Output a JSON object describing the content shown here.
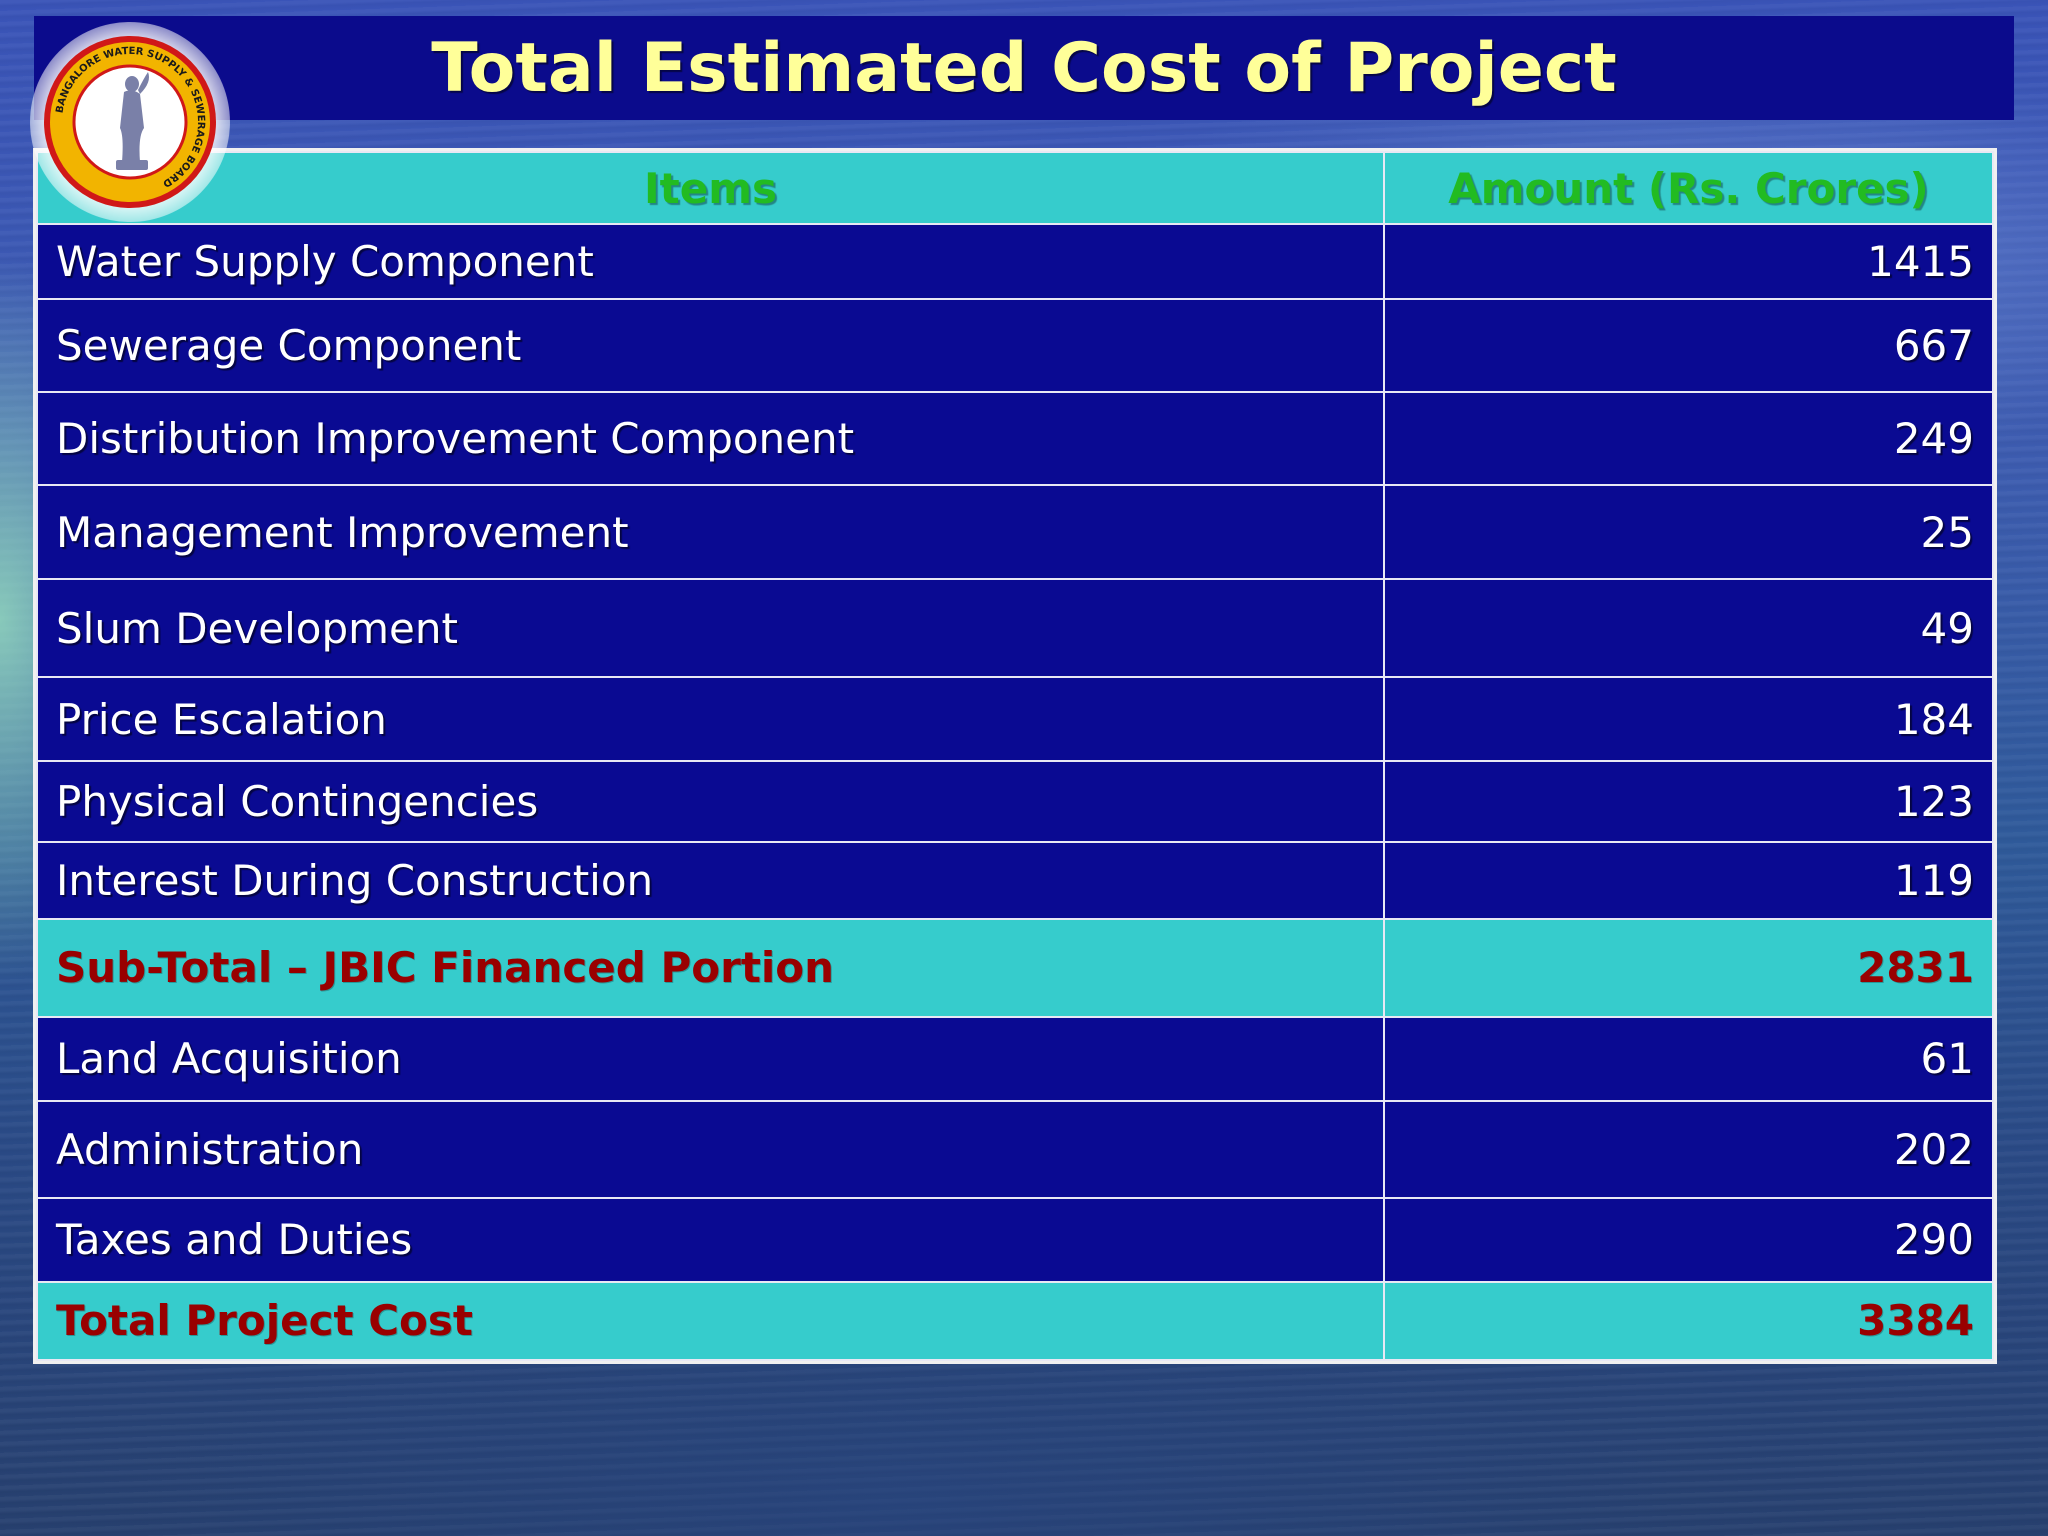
{
  "slide": {
    "title": "Total Estimated Cost of Project",
    "logo": {
      "icon": "bwssb-seal-icon",
      "text": "BANGALORE WATER SUPPLY & SEWERAGE BOARD",
      "colors": {
        "ring": "#f2b400",
        "rim": "#d01818",
        "center": "#ffffff"
      }
    }
  },
  "table": {
    "headers": {
      "items": "Items",
      "amount": "Amount (Rs. Crores)"
    },
    "rows": [
      {
        "item": "Water Supply Component",
        "amount": "1415"
      },
      {
        "item": "Sewerage Component",
        "amount": "667"
      },
      {
        "item": "Distribution Improvement Component",
        "amount": "249"
      },
      {
        "item": "Management Improvement",
        "amount": "25"
      },
      {
        "item": "Slum Development",
        "amount": "49"
      },
      {
        "item": "Price Escalation",
        "amount": "184"
      },
      {
        "item": "Physical Contingencies",
        "amount": "123"
      },
      {
        "item": "Interest During Construction",
        "amount": "119"
      },
      {
        "item": "Sub-Total – JBIC Financed Portion",
        "amount": "2831"
      },
      {
        "item": "Land Acquisition",
        "amount": "61"
      },
      {
        "item": "Administration",
        "amount": "202"
      },
      {
        "item": "Taxes and Duties",
        "amount": "290"
      },
      {
        "item": "Total Project Cost",
        "amount": "3384"
      }
    ]
  },
  "colors": {
    "title_bg": "#0b0b8c",
    "title_text": "#ffff99",
    "cell_bg": "#0a0a92",
    "header_bg": "#36cccc",
    "header_text": "#22bb22",
    "highlight_text": "#990000"
  }
}
